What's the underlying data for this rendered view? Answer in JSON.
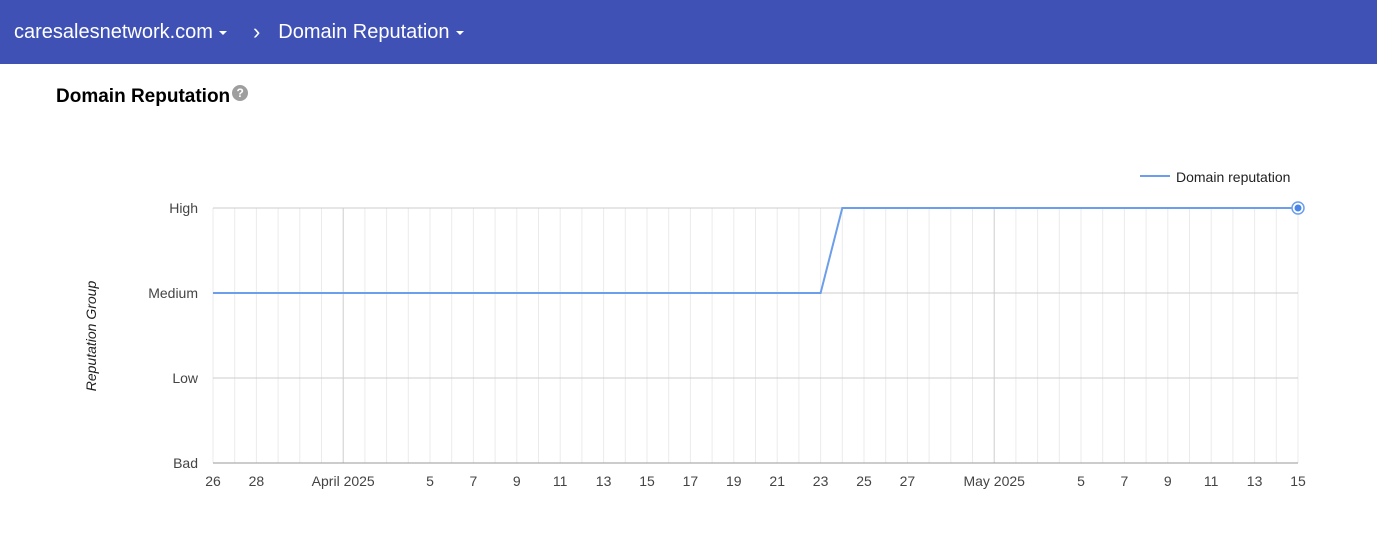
{
  "header": {
    "domain": "caresalesnetwork.com",
    "separator": "›",
    "page": "Domain Reputation"
  },
  "section": {
    "title": "Domain Reputation",
    "help_icon": "help-icon"
  },
  "colors": {
    "header_bg": "#3f51b5",
    "series": "#6d9eeb"
  },
  "chart_data": {
    "type": "line",
    "title": "",
    "ylabel": "Reputation Group",
    "xlabel": "",
    "legend": {
      "position": "top-right",
      "entries": [
        "Domain reputation"
      ]
    },
    "y_categories": [
      "Bad",
      "Low",
      "Medium",
      "High"
    ],
    "x_range": [
      "2025-03-26",
      "2025-05-15"
    ],
    "x_ticks": [
      {
        "date": "2025-03-26",
        "label": "26"
      },
      {
        "date": "2025-03-28",
        "label": "28"
      },
      {
        "date": "2025-04-01",
        "label": "April 2025"
      },
      {
        "date": "2025-04-05",
        "label": "5"
      },
      {
        "date": "2025-04-07",
        "label": "7"
      },
      {
        "date": "2025-04-09",
        "label": "9"
      },
      {
        "date": "2025-04-11",
        "label": "11"
      },
      {
        "date": "2025-04-13",
        "label": "13"
      },
      {
        "date": "2025-04-15",
        "label": "15"
      },
      {
        "date": "2025-04-17",
        "label": "17"
      },
      {
        "date": "2025-04-19",
        "label": "19"
      },
      {
        "date": "2025-04-21",
        "label": "21"
      },
      {
        "date": "2025-04-23",
        "label": "23"
      },
      {
        "date": "2025-04-25",
        "label": "25"
      },
      {
        "date": "2025-04-27",
        "label": "27"
      },
      {
        "date": "2025-05-01",
        "label": "May 2025"
      },
      {
        "date": "2025-05-05",
        "label": "5"
      },
      {
        "date": "2025-05-07",
        "label": "7"
      },
      {
        "date": "2025-05-09",
        "label": "9"
      },
      {
        "date": "2025-05-11",
        "label": "11"
      },
      {
        "date": "2025-05-13",
        "label": "13"
      },
      {
        "date": "2025-05-15",
        "label": "15"
      }
    ],
    "series": [
      {
        "name": "Domain reputation",
        "points": [
          {
            "x": "2025-03-26",
            "y": "Medium"
          },
          {
            "x": "2025-04-23",
            "y": "Medium"
          },
          {
            "x": "2025-04-24",
            "y": "High"
          },
          {
            "x": "2025-05-15",
            "y": "High"
          }
        ]
      }
    ],
    "grid": true
  }
}
